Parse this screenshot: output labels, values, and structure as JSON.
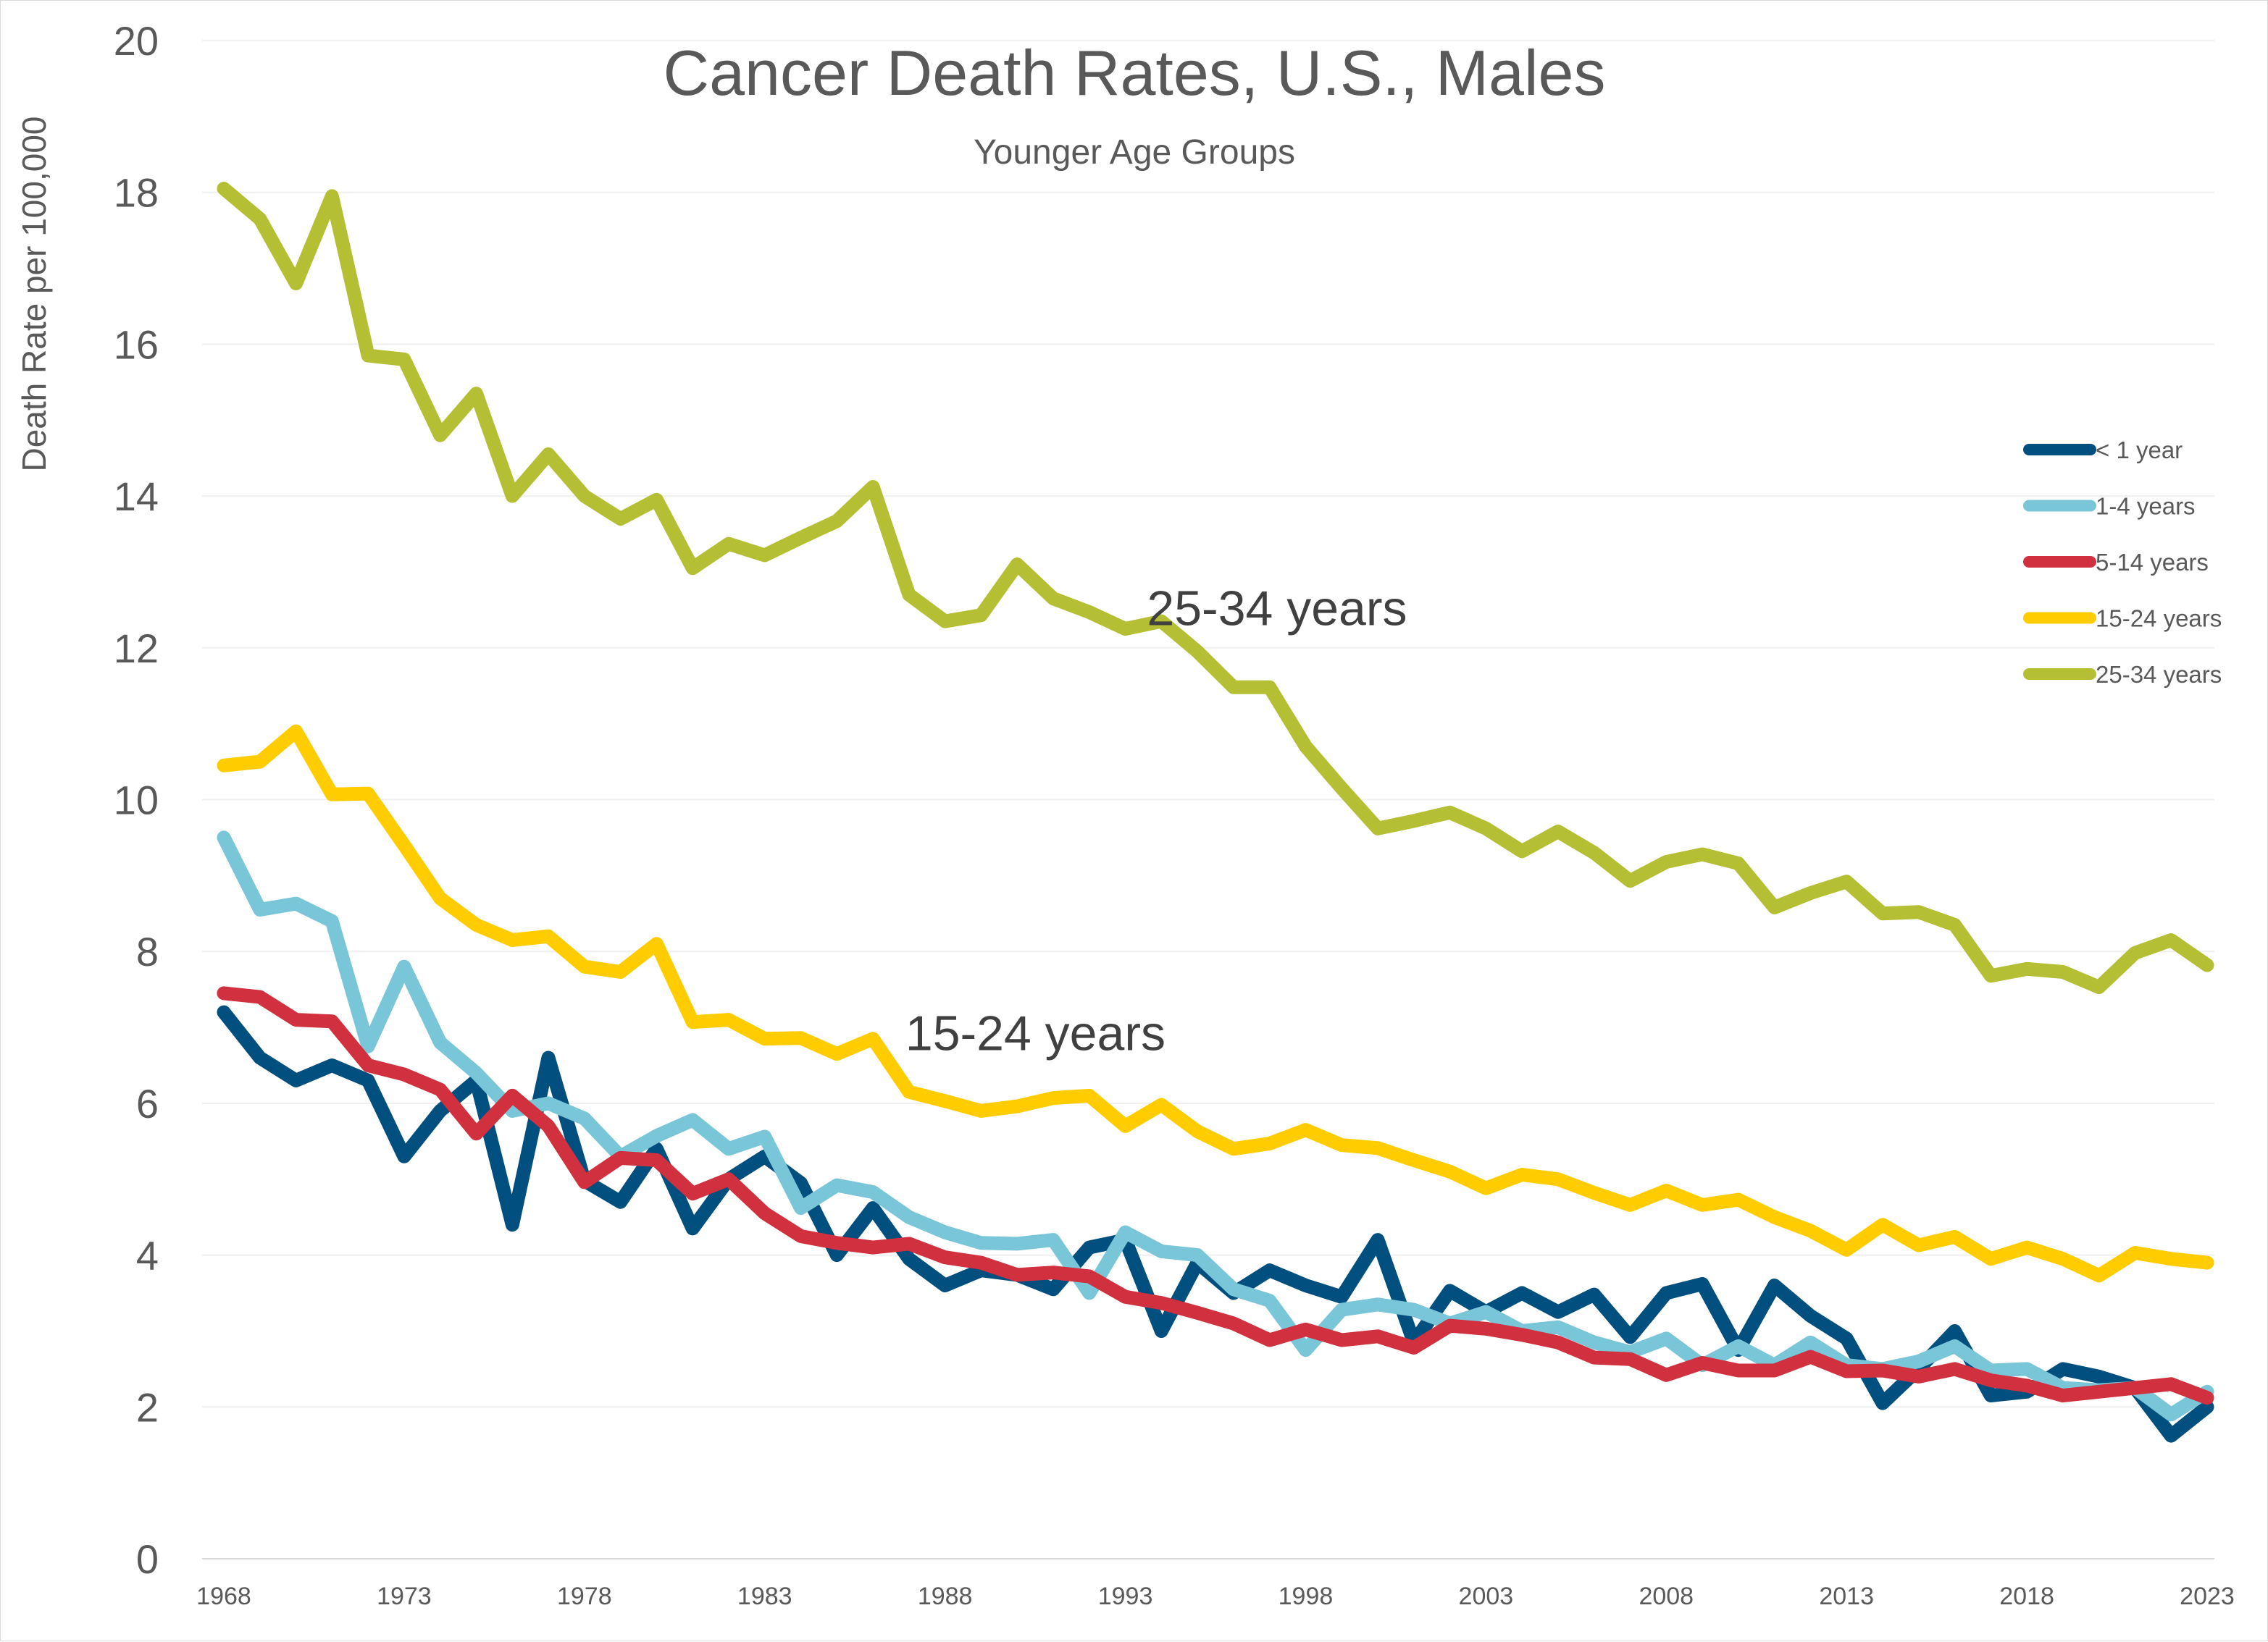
{
  "chart_data": {
    "type": "line",
    "title": "Cancer Death Rates, U.S., Males",
    "subtitle": "Younger Age Groups",
    "ylabel": "Death Rate per 100,000",
    "xlabel": "",
    "ylim": [
      0,
      20
    ],
    "yticks": [
      0,
      2,
      4,
      6,
      8,
      10,
      12,
      14,
      16,
      18,
      20
    ],
    "xticks": [
      1968,
      1973,
      1978,
      1983,
      1988,
      1993,
      1998,
      2003,
      2008,
      2013,
      2018,
      2023
    ],
    "xlim": [
      1968,
      2023
    ],
    "grid": "horizontal",
    "legend_position": "right",
    "x": [
      1968,
      1969,
      1970,
      1971,
      1972,
      1973,
      1974,
      1975,
      1976,
      1977,
      1978,
      1979,
      1980,
      1981,
      1982,
      1983,
      1984,
      1985,
      1986,
      1987,
      1988,
      1989,
      1990,
      1991,
      1992,
      1993,
      1994,
      1995,
      1996,
      1997,
      1998,
      1999,
      2000,
      2001,
      2002,
      2003,
      2004,
      2005,
      2006,
      2007,
      2008,
      2009,
      2010,
      2011,
      2012,
      2013,
      2014,
      2015,
      2016,
      2017,
      2018,
      2019,
      2020,
      2021,
      2022,
      2023
    ],
    "series": [
      {
        "name": "< 1 year",
        "color": "#004f7f",
        "values": [
          7.2,
          6.6,
          6.3,
          6.5,
          6.3,
          5.3,
          5.9,
          6.3,
          4.4,
          6.6,
          4.98,
          4.7,
          5.4,
          4.35,
          5.0,
          5.3,
          4.95,
          4.0,
          4.62,
          3.95,
          3.6,
          3.8,
          3.74,
          3.55,
          4.1,
          4.2,
          3.0,
          3.9,
          3.5,
          3.8,
          3.6,
          3.45,
          4.2,
          2.85,
          3.53,
          3.25,
          3.5,
          3.25,
          3.48,
          2.92,
          3.5,
          3.62,
          2.75,
          3.6,
          3.2,
          2.9,
          2.05,
          2.5,
          3.0,
          2.15,
          2.2,
          2.5,
          2.4,
          2.25,
          1.62,
          2.0
        ]
      },
      {
        "name": "1-4 years",
        "color": "#78c6d8",
        "values": [
          9.5,
          8.55,
          8.63,
          8.4,
          6.75,
          7.8,
          6.8,
          6.4,
          5.9,
          6.0,
          5.8,
          5.3,
          5.57,
          5.78,
          5.4,
          5.56,
          4.62,
          4.92,
          4.83,
          4.5,
          4.3,
          4.16,
          4.15,
          4.2,
          3.5,
          4.3,
          4.05,
          4.0,
          3.55,
          3.4,
          2.75,
          3.28,
          3.35,
          3.28,
          3.1,
          3.25,
          3.0,
          3.05,
          2.85,
          2.72,
          2.9,
          2.55,
          2.8,
          2.55,
          2.85,
          2.55,
          2.5,
          2.6,
          2.8,
          2.48,
          2.5,
          2.25,
          2.22,
          2.25,
          1.9,
          2.2
        ]
      },
      {
        "name": "5-14 years",
        "color": "#d1303e",
        "values": [
          7.45,
          7.4,
          7.1,
          7.08,
          6.5,
          6.38,
          6.18,
          5.6,
          6.1,
          5.7,
          4.96,
          5.28,
          5.25,
          4.81,
          5.0,
          4.55,
          4.25,
          4.16,
          4.1,
          4.15,
          3.97,
          3.9,
          3.74,
          3.77,
          3.72,
          3.45,
          3.37,
          3.24,
          3.1,
          2.88,
          3.02,
          2.88,
          2.93,
          2.78,
          3.07,
          3.03,
          2.95,
          2.85,
          2.65,
          2.63,
          2.42,
          2.58,
          2.48,
          2.48,
          2.66,
          2.47,
          2.48,
          2.4,
          2.5,
          2.35,
          2.28,
          2.15,
          2.2,
          2.25,
          2.3,
          2.12
        ]
      },
      {
        "name": "15-24 years",
        "color": "#ffcc00",
        "values": [
          10.45,
          10.5,
          10.9,
          10.07,
          10.08,
          9.4,
          8.7,
          8.35,
          8.15,
          8.2,
          7.8,
          7.73,
          8.1,
          7.07,
          7.1,
          6.85,
          6.86,
          6.65,
          6.85,
          6.15,
          6.03,
          5.9,
          5.96,
          6.07,
          6.1,
          5.7,
          5.98,
          5.63,
          5.4,
          5.47,
          5.65,
          5.45,
          5.41,
          5.25,
          5.1,
          4.88,
          5.06,
          5.0,
          4.82,
          4.66,
          4.85,
          4.66,
          4.73,
          4.5,
          4.32,
          4.07,
          4.4,
          4.13,
          4.24,
          3.95,
          4.1,
          3.95,
          3.73,
          4.03,
          3.95,
          3.9
        ]
      },
      {
        "name": "25-34 years",
        "color": "#b5bf34",
        "values": [
          18.05,
          17.65,
          16.8,
          17.95,
          15.85,
          15.8,
          14.8,
          15.35,
          14.0,
          14.55,
          14.0,
          13.7,
          13.95,
          13.05,
          13.37,
          13.22,
          13.45,
          13.67,
          14.12,
          12.7,
          12.35,
          12.43,
          13.1,
          12.65,
          12.47,
          12.25,
          12.35,
          11.95,
          11.48,
          11.48,
          10.7,
          10.15,
          9.62,
          9.72,
          9.83,
          9.62,
          9.32,
          9.58,
          9.3,
          8.93,
          9.18,
          9.28,
          9.16,
          8.58,
          8.77,
          8.92,
          8.5,
          8.52,
          8.35,
          7.68,
          7.77,
          7.73,
          7.53,
          7.98,
          8.15,
          7.82
        ]
      }
    ],
    "annotations": [
      {
        "text": "25-34 years",
        "x": 1993.6,
        "y": 12.3
      },
      {
        "text": "15-24 years",
        "x": 1986.9,
        "y": 6.7
      }
    ]
  }
}
